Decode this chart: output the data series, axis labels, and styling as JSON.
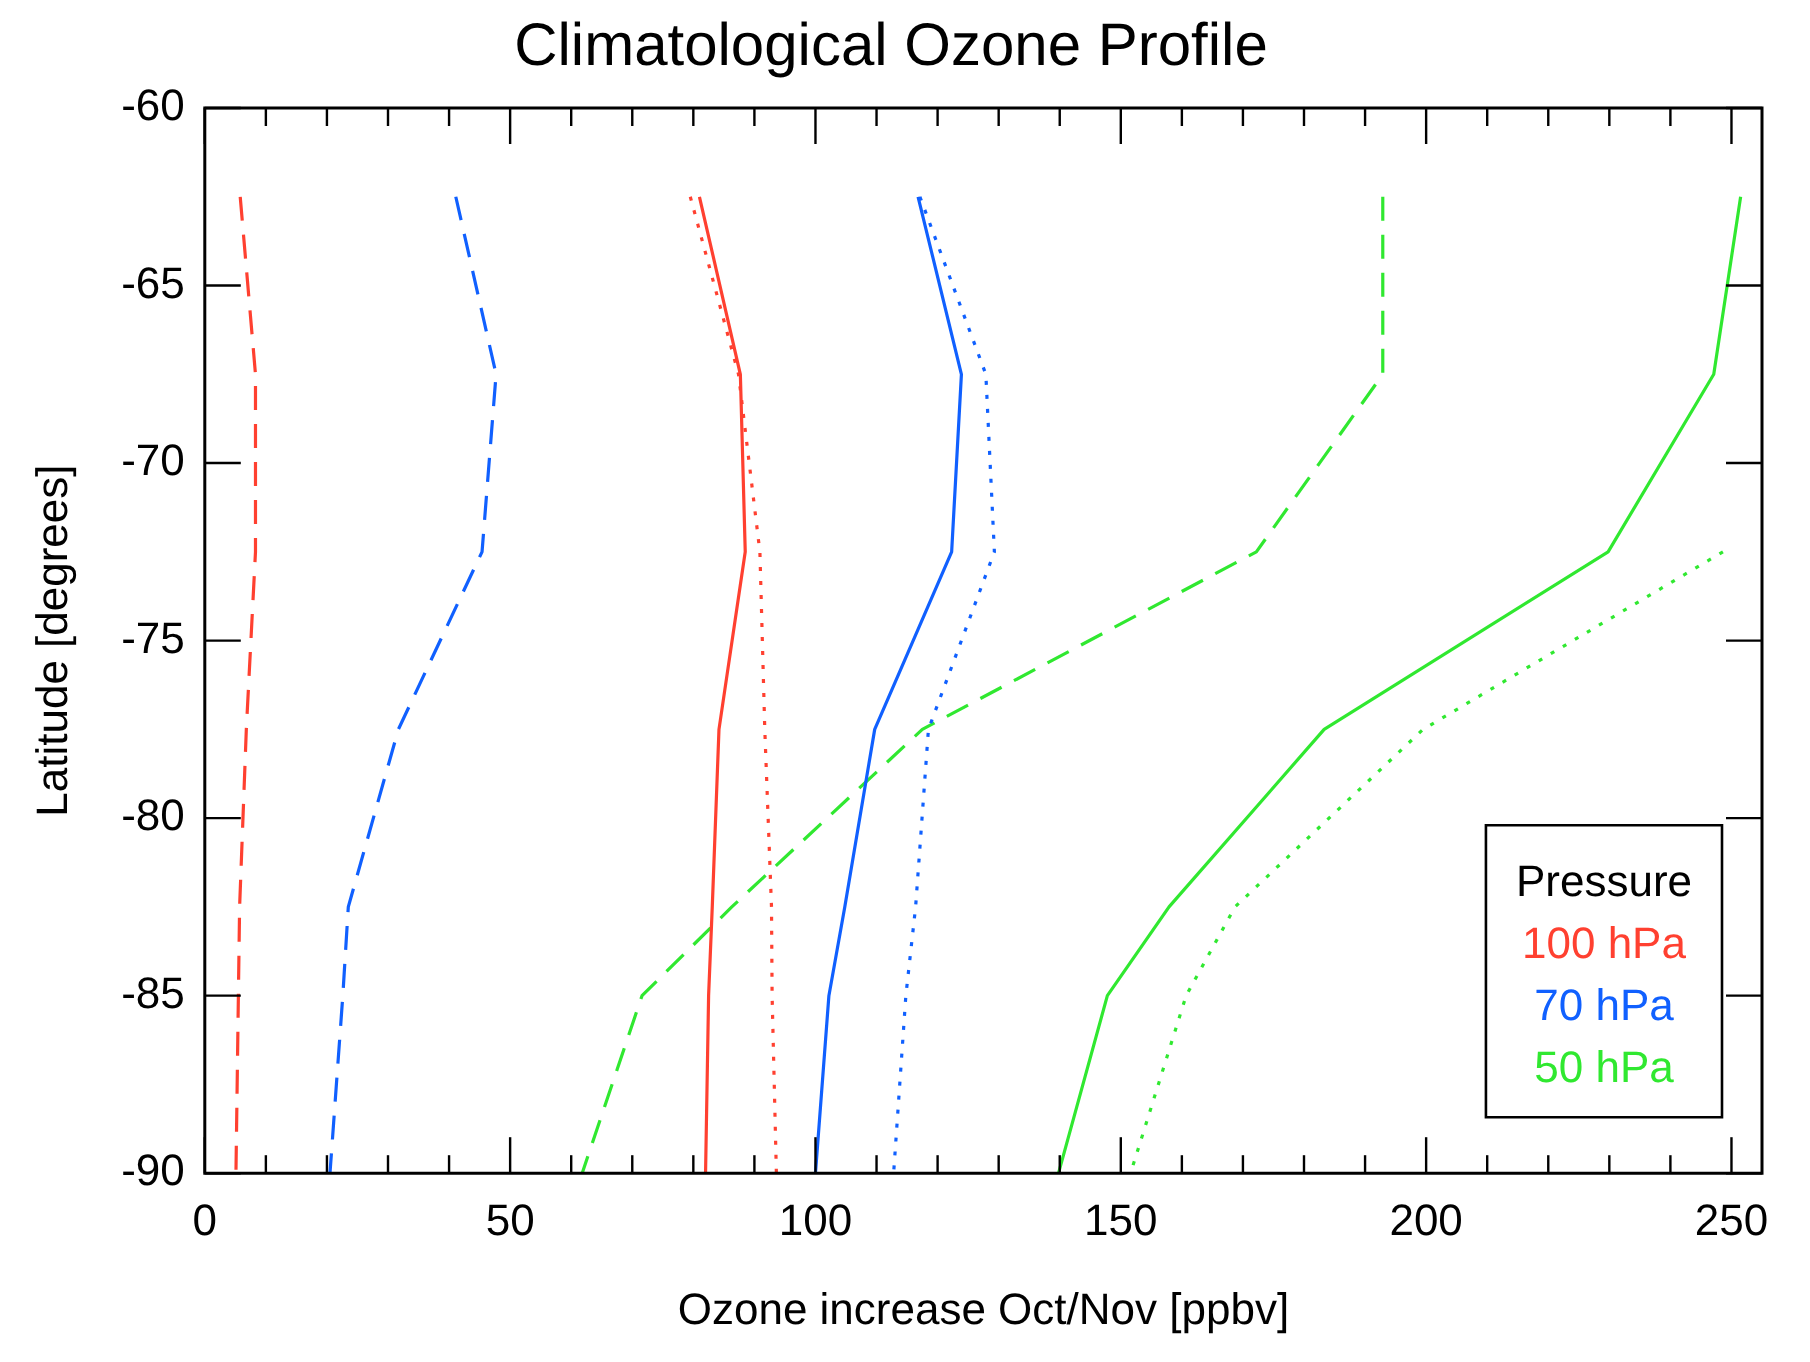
{
  "chart_data": {
    "type": "line",
    "title": "Climatological Ozone Profile",
    "xlabel": "Ozone increase Oct/Nov [ppbv]",
    "ylabel": "Latitude [degrees]",
    "legend_title": "Pressure",
    "legend": "bottom right",
    "grid": false,
    "marker": "none",
    "xlim": [
      0,
      255
    ],
    "ylim": [
      -90,
      -60
    ],
    "xticks": [
      0,
      {
        "value": 10,
        "label": null
      },
      {
        "value": 20,
        "label": null
      },
      {
        "value": 30,
        "label": null
      },
      {
        "value": 40,
        "label": null
      },
      50,
      {
        "value": 60,
        "label": null
      },
      {
        "value": 70,
        "label": null
      },
      {
        "value": 80,
        "label": null
      },
      {
        "value": 90,
        "label": null
      },
      100,
      {
        "value": 110,
        "label": null
      },
      {
        "value": 120,
        "label": null
      },
      {
        "value": 130,
        "label": null
      },
      {
        "value": 140,
        "label": null
      },
      150,
      {
        "value": 160,
        "label": null
      },
      {
        "value": 170,
        "label": null
      },
      {
        "value": 180,
        "label": null
      },
      {
        "value": 190,
        "label": null
      },
      200,
      {
        "value": 210,
        "label": null
      },
      {
        "value": 220,
        "label": null
      },
      {
        "value": 230,
        "label": null
      },
      {
        "value": 240,
        "label": null
      },
      250
    ],
    "yticks": [
      -90,
      -85,
      -80,
      -75,
      -70,
      -65,
      -60
    ],
    "series": [
      {
        "name": "100 hPa",
        "color": "#ff4030",
        "line_style": "solid",
        "x": [
          81,
          87.7,
          88.5,
          84.2,
          83.1,
          82.5,
          82
        ],
        "values": [
          -62.5,
          -67.5,
          -72.5,
          -77.5,
          -82.5,
          -85,
          -90
        ]
      },
      {
        "color": "#ff4030",
        "line_style": "dashed",
        "x": [
          5.8,
          8.3,
          8.3,
          6.8,
          5.7,
          5.5,
          5.1
        ],
        "values": [
          -62.5,
          -67.5,
          -72.5,
          -77.5,
          -82.5,
          -85,
          -90
        ]
      },
      {
        "color": "#ff4030",
        "line_style": "dotted",
        "x": [
          79.5,
          87.4,
          90.9,
          91.7,
          92.8,
          92.9,
          93.6
        ],
        "values": [
          -62.5,
          -67.5,
          -72.5,
          -77.5,
          -82.5,
          -85,
          -90
        ]
      },
      {
        "name": "70 hPa",
        "color": "#1060ff",
        "line_style": "solid",
        "x": [
          116.8,
          123.9,
          122.3,
          109.7,
          104.8,
          102.2,
          100
        ],
        "values": [
          -62.5,
          -67.5,
          -72.5,
          -77.5,
          -82.5,
          -85,
          -90
        ]
      },
      {
        "color": "#1060ff",
        "line_style": "dashed",
        "x": [
          41.1,
          47.7,
          45.4,
          31.7,
          23.5,
          22.6,
          20.5
        ],
        "values": [
          -62.5,
          -67.5,
          -72.5,
          -77.5,
          -82.5,
          -85,
          -90
        ]
      },
      {
        "color": "#1060ff",
        "line_style": "dotted",
        "x": [
          117.1,
          127.9,
          129.3,
          118.5,
          116.4,
          114.8,
          112.8
        ],
        "values": [
          -62.5,
          -67.5,
          -72.5,
          -77.5,
          -82.5,
          -85,
          -90
        ]
      },
      {
        "name": "50 hPa",
        "color": "#30e830",
        "line_style": "solid",
        "x": [
          251.5,
          247.1,
          229.8,
          183.3,
          157.9,
          147.8,
          139.8
        ],
        "values": [
          -62.5,
          -67.5,
          -72.5,
          -77.5,
          -82.5,
          -85,
          -90
        ]
      },
      {
        "color": "#30e830",
        "line_style": "dashed",
        "x": [
          192.9,
          192.9,
          172.2,
          117.5,
          86.3,
          71.6,
          61.8
        ],
        "values": [
          -62.5,
          -67.5,
          -72.5,
          -77.5,
          -82.5,
          -85,
          -90
        ]
      },
      {
        "color": "#30e830",
        "line_style": "dotted",
        "x": [
          248.6,
          199.5,
          168.7,
          160.7,
          151.6
        ],
        "values": [
          -72.5,
          -77.5,
          -82.5,
          -85,
          -90
        ]
      }
    ]
  }
}
